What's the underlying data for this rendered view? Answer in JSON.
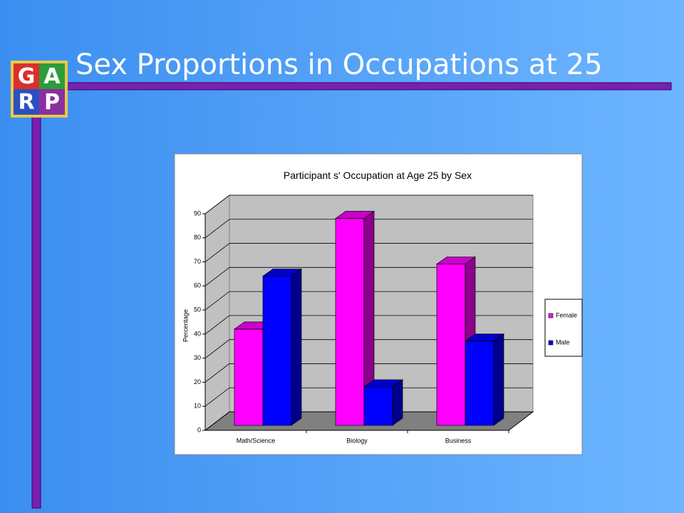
{
  "slide_title": "Sex Proportions in Occupations at 25",
  "logo": [
    "G",
    "A",
    "R",
    "P"
  ],
  "chart_data": {
    "type": "bar3d",
    "title": "Participant s' Occupation at Age 25 by Sex",
    "y_label": "Percentage",
    "categories": [
      "Math/Science",
      "Biology",
      "Business"
    ],
    "series": [
      {
        "name": "Female",
        "color": "#ff00ff",
        "values": [
          40,
          86,
          67
        ]
      },
      {
        "name": "Male",
        "color": "#0000ff",
        "values": [
          62,
          16,
          35
        ]
      }
    ],
    "ylim": [
      0,
      90
    ],
    "yticks": [
      0,
      10,
      20,
      30,
      40,
      50,
      60,
      70,
      80,
      90
    ],
    "grid": true,
    "legend": "right"
  }
}
